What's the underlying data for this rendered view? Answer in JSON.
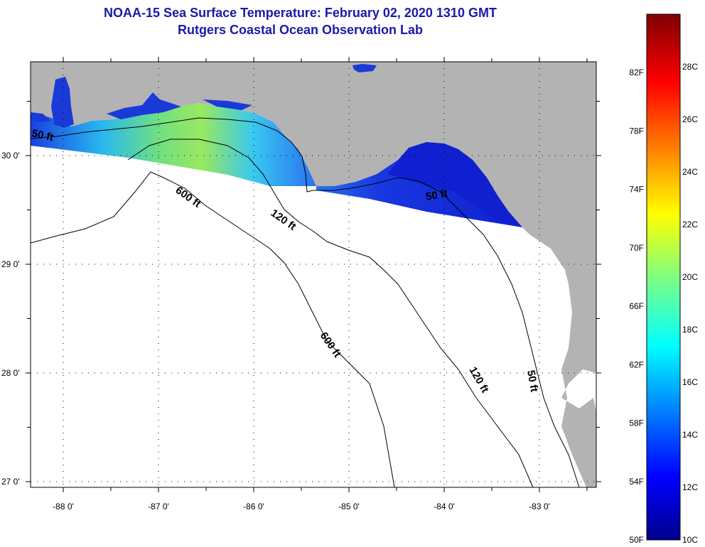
{
  "header": {
    "title": "NOAA-15 Sea Surface Temperature:  February 02, 2020 1310 GMT",
    "subtitle": "Rutgers Coastal Ocean Observation Lab"
  },
  "colors": {
    "land": "#b3b3b3",
    "water_blue_dark": "#1020d0",
    "water_blue": "#2f6ff0",
    "water_cyan": "#28c8f0",
    "water_green": "#7fe070",
    "water_yellowgreen": "#b8e850",
    "no_data": "#ffffff",
    "title": "#1a1aa8"
  },
  "map": {
    "lon_ticks": [
      {
        "lon": -88,
        "label": "-88 0'"
      },
      {
        "lon": -87,
        "label": "-87 0'"
      },
      {
        "lon": -86,
        "label": "-86 0'"
      },
      {
        "lon": -85,
        "label": "-85 0'"
      },
      {
        "lon": -84,
        "label": "-84 0'"
      },
      {
        "lon": -83,
        "label": "-83 0'"
      }
    ],
    "lat_ticks": [
      {
        "lat": 30,
        "label": "30 0'"
      },
      {
        "lat": 29,
        "label": "29 0'"
      },
      {
        "lat": 28,
        "label": "28 0'"
      },
      {
        "lat": 27,
        "label": "27 0'"
      }
    ],
    "contour_labels": [
      {
        "text": "50 ft",
        "id": "c50a"
      },
      {
        "text": "600 ft",
        "id": "c600a"
      },
      {
        "text": "120 ft",
        "id": "c120a"
      },
      {
        "text": "50 ft",
        "id": "c50b"
      },
      {
        "text": "600 ft",
        "id": "c600b"
      },
      {
        "text": "120 ft",
        "id": "c120b"
      },
      {
        "text": "50 ft",
        "id": "c50c"
      }
    ]
  },
  "colorbar": {
    "min_c": 10,
    "max_c": 30,
    "fahrenheit_labels": [
      "82F",
      "78F",
      "74F",
      "70F",
      "66F",
      "62F",
      "58F",
      "54F",
      "50F"
    ],
    "celsius_labels": [
      "28C",
      "26C",
      "24C",
      "22C",
      "20C",
      "18C",
      "16C",
      "14C",
      "12C",
      "10C"
    ]
  }
}
